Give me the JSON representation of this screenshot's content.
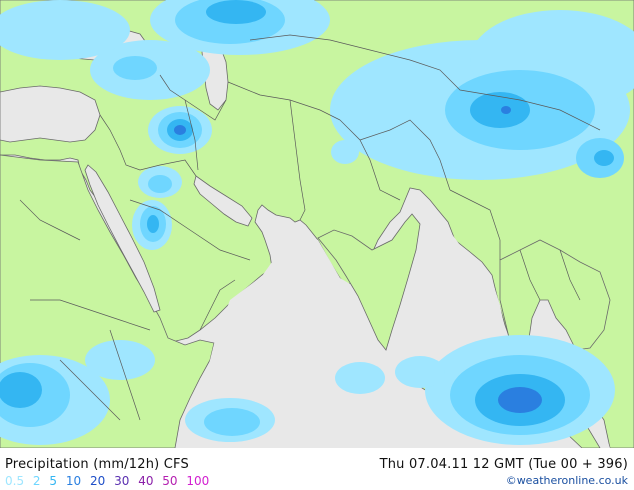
{
  "footer": {
    "title": "Precipitation (mm/12h) CFS",
    "run": "Thu 07.04.11 12 GMT (Tue 00 + 396)",
    "credit": "©weatheronline.co.uk"
  },
  "legend": [
    {
      "label": "0.5",
      "color": "#9fe6ff"
    },
    {
      "label": "2",
      "color": "#6fd6ff"
    },
    {
      "label": "5",
      "color": "#34b6f2"
    },
    {
      "label": "10",
      "color": "#2a7fe0"
    },
    {
      "label": "20",
      "color": "#1f4fc8"
    },
    {
      "label": "30",
      "color": "#5a2fb0"
    },
    {
      "label": "40",
      "color": "#8a1fa8"
    },
    {
      "label": "50",
      "color": "#b41fb0"
    },
    {
      "label": "100",
      "color": "#d21fd0"
    }
  ],
  "colors": {
    "land": "#c8f5a0",
    "sea": "#e8e8e8",
    "border": "#5a5a5a",
    "precip_0_5": "#9fe6ff",
    "precip_2": "#6fd6ff",
    "precip_5": "#34b6f2",
    "precip_10": "#2a7fe0"
  }
}
